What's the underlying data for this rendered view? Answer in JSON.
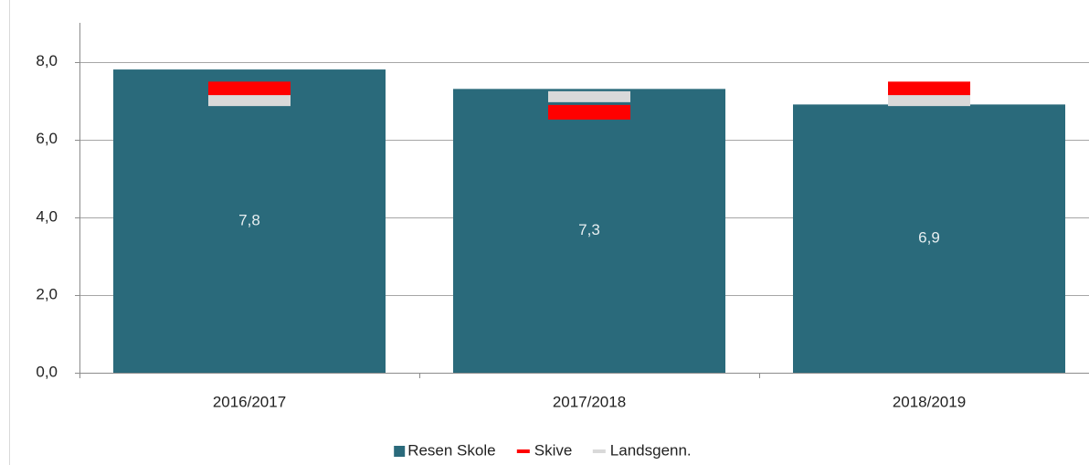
{
  "chart_data": {
    "type": "bar",
    "categories": [
      "2016/2017",
      "2017/2018",
      "2018/2019"
    ],
    "series": [
      {
        "name": "Resen Skole",
        "color": "#2a6a7b",
        "values": [
          7.8,
          7.3,
          6.9
        ],
        "value_labels": [
          "7,8",
          "7,3",
          "6,9"
        ]
      },
      {
        "name": "Skive",
        "color": "#ff0000",
        "values": [
          7.3,
          6.7,
          7.3
        ]
      },
      {
        "name": "Landsgenn.",
        "color": "#d9d9d9",
        "values": [
          7.0,
          7.1,
          7.0
        ]
      }
    ],
    "ylim": [
      0,
      9
    ],
    "yticks": [
      {
        "value": 0,
        "label": "0,0"
      },
      {
        "value": 2,
        "label": "2,0"
      },
      {
        "value": 4,
        "label": "4,0"
      },
      {
        "value": 6,
        "label": "6,0"
      },
      {
        "value": 8,
        "label": "8,0"
      }
    ],
    "grid": true,
    "legend": "bottom"
  }
}
